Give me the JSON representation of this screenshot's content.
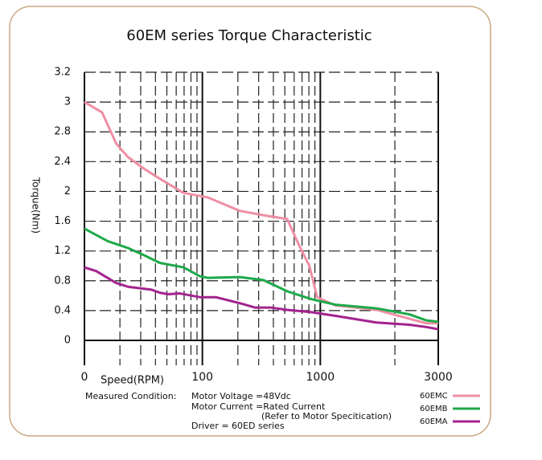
{
  "chart_data": {
    "type": "line",
    "title": "60EM series Torque Characteristic",
    "x_label": "Speed(RPM)",
    "y_label": "Torque(Nm)",
    "xscale": "log",
    "xlim": [
      0,
      3000
    ],
    "xticks": [
      0,
      100,
      1000,
      3000
    ],
    "ylim": [
      0,
      3.2
    ],
    "yticks": [
      0.0,
      0.4,
      0.8,
      1.2,
      1.6,
      2.0,
      2.4,
      2.8,
      3.0,
      3.2
    ],
    "grid": true,
    "legend": "lower right",
    "series": [
      {
        "name": "60EMC",
        "color": "#ee8fa4",
        "x": [
          0,
          15,
          27,
          37,
          51,
          64,
          84,
          111,
          207,
          329,
          523,
          659,
          808,
          940,
          1148,
          1687,
          2291,
          2677,
          3000
        ],
        "values": [
          3.0,
          2.93,
          2.64,
          2.46,
          2.3,
          2.17,
          1.98,
          1.92,
          1.74,
          1.68,
          1.63,
          1.28,
          1.0,
          0.58,
          0.47,
          0.41,
          0.29,
          0.23,
          0.23
        ]
      },
      {
        "name": "60EMB",
        "color": "#1daa4a",
        "x": [
          0,
          20,
          37,
          51,
          64,
          84,
          98,
          111,
          207,
          329,
          523,
          855,
          1148,
          1687,
          2291,
          2677,
          3000
        ],
        "values": [
          1.5,
          1.33,
          1.24,
          1.14,
          1.04,
          0.98,
          0.86,
          0.84,
          0.85,
          0.81,
          0.66,
          0.55,
          0.48,
          0.43,
          0.35,
          0.27,
          0.25
        ]
      },
      {
        "name": "60EMA",
        "color": "#a3238e",
        "x": [
          0,
          10,
          27,
          37,
          57,
          64,
          71,
          81,
          98,
          130,
          207,
          281,
          384,
          523,
          831,
          1148,
          1687,
          2291,
          2677,
          3000
        ],
        "values": [
          0.98,
          0.93,
          0.77,
          0.72,
          0.68,
          0.64,
          0.62,
          0.63,
          0.58,
          0.58,
          0.5,
          0.44,
          0.44,
          0.41,
          0.38,
          0.33,
          0.24,
          0.21,
          0.18,
          0.15
        ]
      }
    ],
    "notes": {
      "condition": "Measured Condition:",
      "voltage": "Motor Voltage =48Vdc",
      "current": "Motor Current =Rated Current",
      "refer": "(Refer to Motor Specitication)",
      "driver": "Driver = 60ED series"
    }
  }
}
